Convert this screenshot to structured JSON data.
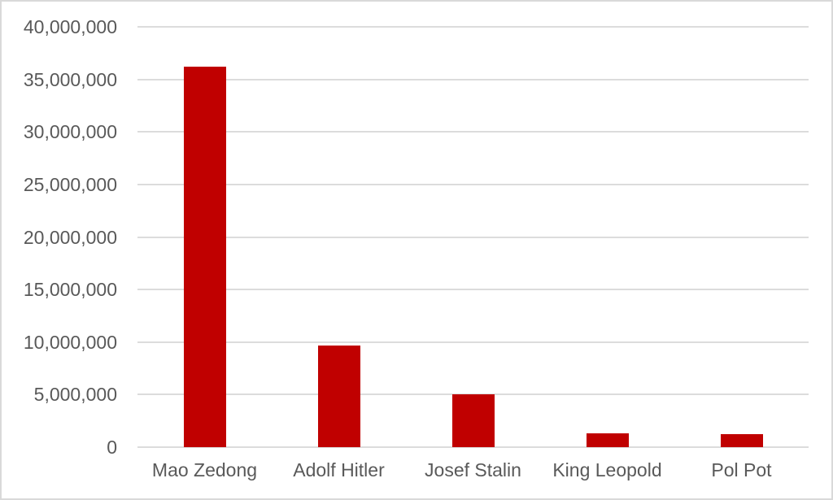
{
  "chart_data": {
    "type": "bar",
    "title": "",
    "xlabel": "",
    "ylabel": "",
    "categories": [
      "Mao Zedong",
      "Adolf Hitler",
      "Josef Stalin",
      "King Leopold",
      "Pol Pot"
    ],
    "values": [
      36200000,
      9700000,
      5000000,
      1300000,
      1200000
    ],
    "ylim": [
      0,
      40000000
    ],
    "ytick_interval": 5000000,
    "ytick_labels": [
      "0",
      "5,000,000",
      "10,000,000",
      "15,000,000",
      "20,000,000",
      "25,000,000",
      "30,000,000",
      "35,000,000",
      "40,000,000"
    ],
    "grid": true,
    "legend": false,
    "colors": {
      "bar": "#c00000",
      "gridline": "#dcdcdc",
      "axis_text": "#595959",
      "background": "#ffffff",
      "border": "#d9d9d9"
    }
  }
}
